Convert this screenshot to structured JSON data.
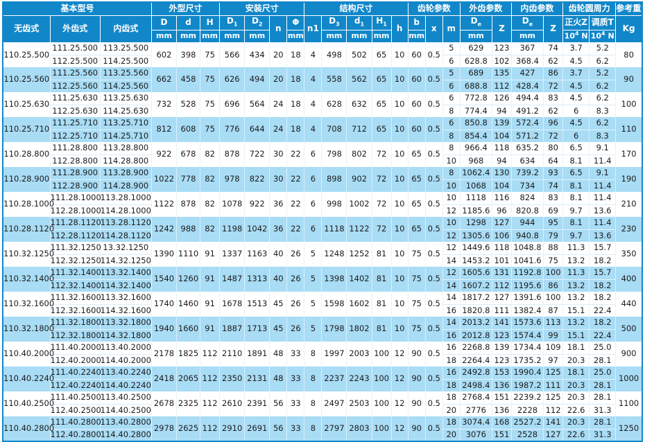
{
  "palette": {
    "header_blue": "#1187c9",
    "alt_row_blue": "#a9dcf5",
    "row_white": "#ffffff",
    "body_text": "#1b1b1b"
  },
  "table": {
    "groups": [
      {
        "label": "基本型号"
      },
      {
        "label": "外型尺寸"
      },
      {
        "label": "安装尺寸"
      },
      {
        "label": "结构尺寸"
      },
      {
        "label": "齿轮参数"
      },
      {
        "label": "外齿参数"
      },
      {
        "label": "内齿参数"
      },
      {
        "label": "齿轮圆周力"
      },
      {
        "label": "参考重量"
      }
    ],
    "cols": {
      "toothless": "无齿式",
      "external": "外齿式",
      "internal": "内齿式",
      "D": "D",
      "d": "d",
      "H": "H",
      "D1": {
        "base": "D",
        "sub": "1"
      },
      "D2": {
        "base": "D",
        "sub": "2"
      },
      "n": "n",
      "phi": "Φ",
      "n1": "n1",
      "D3": {
        "base": "D",
        "sub": "3"
      },
      "d1": {
        "base": "d",
        "sub": "1"
      },
      "H1": {
        "base": "H",
        "sub": "1"
      },
      "h": "h",
      "b": "b",
      "x": "x",
      "m": "m",
      "De_ext": {
        "base": "D",
        "sub": "e"
      },
      "Z_ext": "Z",
      "De_int": {
        "base": "D",
        "sub": "e"
      },
      "Z_int": "Z",
      "normalized": "正火Z",
      "tempered": "调质T",
      "kg": "Kg",
      "unit_mm": "mm",
      "unit_force": {
        "base": "10",
        "sup": "4",
        "tail": " N"
      }
    },
    "shared_col_order": [
      "D",
      "d",
      "H",
      "D1",
      "D2",
      "n",
      "phi",
      "n1",
      "D3",
      "d1",
      "H1",
      "h",
      "b",
      "x"
    ],
    "sub_col_order": [
      "m",
      "De_ext",
      "Z_ext",
      "De_int",
      "Z_int",
      "normalized",
      "tempered"
    ],
    "rows": [
      {
        "model": "110.25.500",
        "external": [
          "111.25.500",
          "112.25.500"
        ],
        "internal": [
          "113.25.500",
          "114.25.500"
        ],
        "shared": [
          "602",
          "398",
          "75",
          "566",
          "434",
          "20",
          "18",
          "4",
          "498",
          "502",
          "65",
          "10",
          "60",
          "0.5"
        ],
        "sub": [
          [
            "5",
            "629",
            "123",
            "367",
            "74",
            "3.7",
            "5.2"
          ],
          [
            "6",
            "628.8",
            "102",
            "368.4",
            "62",
            "4.5",
            "6.2"
          ]
        ],
        "kg": "80"
      },
      {
        "model": "110.25.560",
        "external": [
          "111.25.560",
          "112.25.560"
        ],
        "internal": [
          "113.25.560",
          "114.25.560"
        ],
        "shared": [
          "662",
          "458",
          "75",
          "626",
          "494",
          "20",
          "18",
          "4",
          "558",
          "562",
          "65",
          "10",
          "60",
          "0.5"
        ],
        "sub": [
          [
            "5",
            "689",
            "135",
            "427",
            "86",
            "3.7",
            "5.2"
          ],
          [
            "6",
            "688.8",
            "112",
            "428.4",
            "72",
            "4.5",
            "6.2"
          ]
        ],
        "kg": "90"
      },
      {
        "model": "110.25.630",
        "external": [
          "111.25.630",
          "112.25.630"
        ],
        "internal": [
          "113.25.630",
          "114.25.630"
        ],
        "shared": [
          "732",
          "528",
          "75",
          "696",
          "564",
          "24",
          "18",
          "4",
          "628",
          "632",
          "65",
          "10",
          "60",
          "0.5"
        ],
        "sub": [
          [
            "6",
            "772.8",
            "126",
            "494.4",
            "83",
            "4.5",
            "6.2"
          ],
          [
            "8",
            "774.4",
            "94",
            "491.2",
            "62",
            "6",
            "8.3"
          ]
        ],
        "kg": "100"
      },
      {
        "model": "110.25.710",
        "external": [
          "111.25.710",
          "112.25.710"
        ],
        "internal": [
          "113.25.710",
          "114.25.710"
        ],
        "shared": [
          "812",
          "608",
          "75",
          "776",
          "644",
          "24",
          "18",
          "4",
          "708",
          "712",
          "65",
          "10",
          "60",
          "0.5"
        ],
        "sub": [
          [
            "6",
            "850.8",
            "139",
            "572.4",
            "96",
            "4.5",
            "6.2"
          ],
          [
            "8",
            "854.4",
            "104",
            "571.2",
            "72",
            "6",
            "8.3"
          ]
        ],
        "kg": "110"
      },
      {
        "model": "110.28.800",
        "external": [
          "111.28.800",
          "112.28.800"
        ],
        "internal": [
          "113.28.800",
          "114.28.800"
        ],
        "shared": [
          "922",
          "678",
          "82",
          "878",
          "722",
          "30",
          "22",
          "6",
          "798",
          "802",
          "72",
          "10",
          "65",
          "0.5"
        ],
        "sub": [
          [
            "8",
            "966.4",
            "118",
            "635.2",
            "80",
            "6.5",
            "9.1"
          ],
          [
            "10",
            "968",
            "94",
            "634",
            "64",
            "8.1",
            "11.4"
          ]
        ],
        "kg": "170"
      },
      {
        "model": "110.28.900",
        "external": [
          "111.28.900",
          "112.28.900"
        ],
        "internal": [
          "113.28.900",
          "114.28.900"
        ],
        "shared": [
          "1022",
          "778",
          "82",
          "978",
          "822",
          "30",
          "22",
          "6",
          "898",
          "902",
          "72",
          "10",
          "65",
          "0.5"
        ],
        "sub": [
          [
            "8",
            "1062.4",
            "130",
            "739.2",
            "93",
            "6.5",
            "9.1"
          ],
          [
            "10",
            "1068",
            "104",
            "734",
            "74",
            "8.1",
            "11.4"
          ]
        ],
        "kg": "190"
      },
      {
        "model": "110.28.1000",
        "external": [
          "111.28.1000",
          "112.28.1000"
        ],
        "internal": [
          "113.28.1000",
          "114.28.1000"
        ],
        "shared": [
          "1122",
          "878",
          "82",
          "1078",
          "922",
          "36",
          "22",
          "6",
          "998",
          "1002",
          "72",
          "10",
          "65",
          "0.5"
        ],
        "sub": [
          [
            "10",
            "1118",
            "116",
            "824",
            "83",
            "8.1",
            "11.4"
          ],
          [
            "12",
            "1185.6",
            "96",
            "820.8",
            "69",
            "9.7",
            "13.6"
          ]
        ],
        "kg": "210"
      },
      {
        "model": "110.28.1120",
        "external": [
          "111.28.1120",
          "112.28.1120"
        ],
        "internal": [
          "113.28.1120",
          "114.28.1120"
        ],
        "shared": [
          "1242",
          "988",
          "82",
          "1198",
          "1042",
          "36",
          "22",
          "6",
          "1118",
          "1122",
          "72",
          "10",
          "65",
          "0.5"
        ],
        "sub": [
          [
            "10",
            "1298",
            "127",
            "944",
            "95",
            "8.1",
            "11.4"
          ],
          [
            "12",
            "1305.6",
            "106",
            "940.8",
            "79",
            "9.7",
            "13.6"
          ]
        ],
        "kg": "230"
      },
      {
        "model": "110.32.1250",
        "external": [
          "111.32.1250",
          "112.32.1250"
        ],
        "internal": [
          "13.32.1250",
          "114.32.1250"
        ],
        "shared": [
          "1390",
          "1110",
          "91",
          "1337",
          "1163",
          "40",
          "26",
          "5",
          "1248",
          "1252",
          "81",
          "10",
          "75",
          "0.5"
        ],
        "sub": [
          [
            "12",
            "1449.6",
            "118",
            "1048.8",
            "88",
            "11.3",
            "15.7"
          ],
          [
            "14",
            "1453.2",
            "101",
            "1041.6",
            "75",
            "13.2",
            "18.2"
          ]
        ],
        "kg": "350"
      },
      {
        "model": "110.32.1400",
        "external": [
          "111.32.1400",
          "112.32.1400"
        ],
        "internal": [
          "113.32.1400",
          "114.32.1400"
        ],
        "shared": [
          "1540",
          "1260",
          "91",
          "1487",
          "1313",
          "40",
          "26",
          "5",
          "1398",
          "1402",
          "81",
          "10",
          "75",
          "0.5"
        ],
        "sub": [
          [
            "12",
            "1605.6",
            "131",
            "1192.8",
            "100",
            "11.3",
            "15.7"
          ],
          [
            "14",
            "1607.2",
            "112",
            "1195.6",
            "86",
            "13.2",
            "18.2"
          ]
        ],
        "kg": "400"
      },
      {
        "model": "110.32.1600",
        "external": [
          "111.32.1600",
          "112.32.1600"
        ],
        "internal": [
          "113.32.1600",
          "114.32.1600"
        ],
        "shared": [
          "1740",
          "1460",
          "91",
          "1678",
          "1513",
          "45",
          "26",
          "5",
          "1598",
          "1602",
          "81",
          "10",
          "75",
          "0.5"
        ],
        "sub": [
          [
            "14",
            "1817.2",
            "127",
            "1391.6",
            "100",
            "13.2",
            "18.2"
          ],
          [
            "16",
            "1820.8",
            "111",
            "1382.4",
            "87",
            "15.1",
            "22.4"
          ]
        ],
        "kg": "440"
      },
      {
        "model": "110.32.1800",
        "external": [
          "111.32.1800",
          "112.32.1800"
        ],
        "internal": [
          "113.32.1800",
          "114.32.1800"
        ],
        "shared": [
          "1940",
          "1660",
          "91",
          "1887",
          "1713",
          "45",
          "26",
          "5",
          "1798",
          "1802",
          "81",
          "10",
          "75",
          "0.5"
        ],
        "sub": [
          [
            "14",
            "2013.2",
            "141",
            "1573.6",
            "113",
            "13.2",
            "18.2"
          ],
          [
            "16",
            "2012.8",
            "123",
            "1574.4",
            "99",
            "15.1",
            "22.4"
          ]
        ],
        "kg": "500"
      },
      {
        "model": "110.40.2000",
        "external": [
          "111.40.2000",
          "112.40.2000"
        ],
        "internal": [
          "113.40.2000",
          "114.40.2000"
        ],
        "shared": [
          "2178",
          "1825",
          "112",
          "2110",
          "1891",
          "48",
          "33",
          "8",
          "1997",
          "2003",
          "100",
          "12",
          "90",
          "0.5"
        ],
        "sub": [
          [
            "16",
            "2268.8",
            "139",
            "1734.4",
            "109",
            "18.1",
            "25.0"
          ],
          [
            "18",
            "2264.4",
            "123",
            "1735.2",
            "97",
            "20.3",
            "28.1"
          ]
        ],
        "kg": "900"
      },
      {
        "model": "110.40.2240",
        "external": [
          "111.40.2240",
          "112.40.2240"
        ],
        "internal": [
          "113.40.2240",
          "114.40.2240"
        ],
        "shared": [
          "2418",
          "2065",
          "112",
          "2350",
          "2131",
          "48",
          "33",
          "8",
          "2237",
          "2243",
          "100",
          "12",
          "90",
          "0.5"
        ],
        "sub": [
          [
            "16",
            "2492.8",
            "153",
            "1990.4",
            "125",
            "18.1",
            "25.0"
          ],
          [
            "18",
            "2498.4",
            "136",
            "1987.2",
            "111",
            "20.3",
            "28.1"
          ]
        ],
        "kg": "1000"
      },
      {
        "model": "110.40.2500",
        "external": [
          "111.40.2500",
          "112.40.2500"
        ],
        "internal": [
          "113.40.2500",
          "114.40.2500"
        ],
        "shared": [
          "2678",
          "2325",
          "112",
          "2610",
          "2391",
          "56",
          "33",
          "8",
          "2497",
          "2503",
          "100",
          "12",
          "90",
          "0.5"
        ],
        "sub": [
          [
            "18",
            "2768.4",
            "151",
            "2239.2",
            "125",
            "20.3",
            "28.1"
          ],
          [
            "20",
            "2776",
            "136",
            "2228",
            "112",
            "22.6",
            "31.3"
          ]
        ],
        "kg": "1100"
      },
      {
        "model": "110.40.2800",
        "external": [
          "111.40.2800",
          "112.40.2800"
        ],
        "internal": [
          "113.40.2800",
          "114.40.2800"
        ],
        "shared": [
          "2978",
          "2625",
          "112",
          "2910",
          "2691",
          "56",
          "33",
          "8",
          "2797",
          "2803",
          "100",
          "12",
          "90",
          "0.5"
        ],
        "sub": [
          [
            "18",
            "3074.4",
            "168",
            "2527.2",
            "141",
            "20.3",
            "28.1"
          ],
          [
            "20",
            "3076",
            "151",
            "2528",
            "127",
            "22.6",
            "31.3"
          ]
        ],
        "kg": "1250"
      }
    ]
  }
}
